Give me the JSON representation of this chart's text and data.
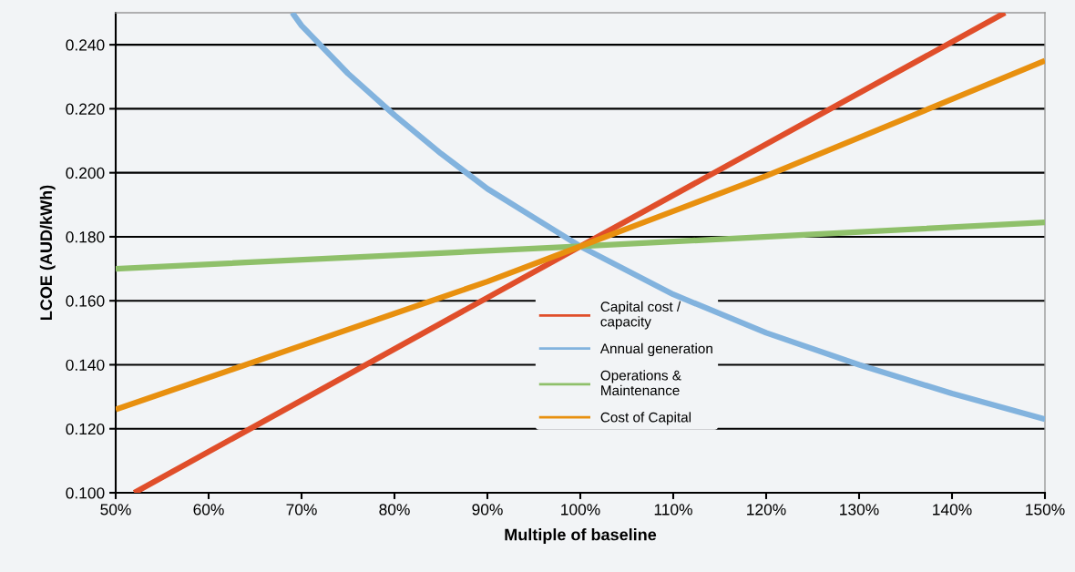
{
  "chart_data": {
    "type": "line",
    "xlabel": "Multiple of baseline",
    "ylabel": "LCOE (AUD/kWh)",
    "series": [
      {
        "name": "Capital cost /\ncapacity",
        "color": "#e04e2a",
        "x": [
          52,
          100,
          145.7
        ],
        "values": [
          0.1,
          0.177,
          0.25
        ]
      },
      {
        "name": "Annual generation",
        "color": "#82b3de",
        "x": [
          69,
          70,
          75,
          80,
          85,
          90,
          95,
          100,
          110,
          120,
          130,
          140,
          150
        ],
        "values": [
          0.25,
          0.246,
          0.231,
          0.218,
          0.206,
          0.195,
          0.186,
          0.177,
          0.162,
          0.15,
          0.14,
          0.131,
          0.123
        ]
      },
      {
        "name": "Operations &\nMaintenance",
        "color": "#8fc06a",
        "x": [
          50,
          100,
          150
        ],
        "values": [
          0.17,
          0.177,
          0.1845
        ]
      },
      {
        "name": "Cost of Capital",
        "color": "#e8900f",
        "x": [
          50,
          60,
          70,
          80,
          90,
          100,
          110,
          120,
          130,
          140,
          150
        ],
        "values": [
          0.126,
          0.136,
          0.146,
          0.156,
          0.166,
          0.177,
          0.188,
          0.199,
          0.211,
          0.223,
          0.235
        ]
      }
    ],
    "xlim": [
      50,
      150
    ],
    "xticks": [
      {
        "value": 50,
        "label": "50%"
      },
      {
        "value": 60,
        "label": "60%"
      },
      {
        "value": 70,
        "label": "70%"
      },
      {
        "value": 80,
        "label": "80%"
      },
      {
        "value": 90,
        "label": "90%"
      },
      {
        "value": 100,
        "label": "100%"
      },
      {
        "value": 110,
        "label": "110%"
      },
      {
        "value": 120,
        "label": "120%"
      },
      {
        "value": 130,
        "label": "130%"
      },
      {
        "value": 140,
        "label": "140%"
      },
      {
        "value": 150,
        "label": "150%"
      }
    ],
    "ylim": [
      0.1,
      0.25
    ],
    "yticks": [
      {
        "value": 0.1,
        "label": "0.100"
      },
      {
        "value": 0.12,
        "label": "0.120"
      },
      {
        "value": 0.14,
        "label": "0.140"
      },
      {
        "value": 0.16,
        "label": "0.160"
      },
      {
        "value": 0.18,
        "label": "0.180"
      },
      {
        "value": 0.2,
        "label": "0.200"
      },
      {
        "value": 0.22,
        "label": "0.220"
      },
      {
        "value": 0.24,
        "label": "0.240"
      }
    ],
    "grid": "y",
    "legend": "center",
    "line_style": "solid",
    "marker": "none"
  }
}
